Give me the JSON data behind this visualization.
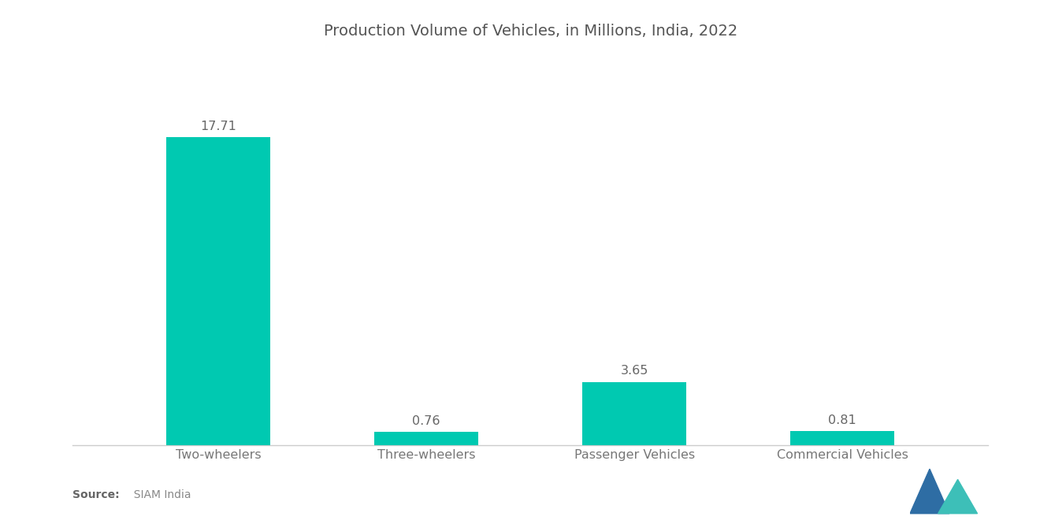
{
  "title": "Production Volume of Vehicles, in Millions, India, 2022",
  "categories": [
    "Two-wheelers",
    "Three-wheelers",
    "Passenger Vehicles",
    "Commercial Vehicles"
  ],
  "values": [
    17.71,
    0.76,
    3.65,
    0.81
  ],
  "bar_color": "#00C9B1",
  "background_color": "#ffffff",
  "title_fontsize": 14,
  "label_fontsize": 11.5,
  "value_fontsize": 11.5,
  "source_bold": "Source:",
  "source_normal": "  SIAM India",
  "ylim": [
    0,
    22
  ],
  "bar_width": 0.5,
  "title_color": "#555555",
  "label_color": "#777777",
  "value_color": "#666666",
  "spine_color": "#cccccc",
  "logo_tri1_color": "#2e6da4",
  "logo_tri2_color": "#3dbfb8"
}
